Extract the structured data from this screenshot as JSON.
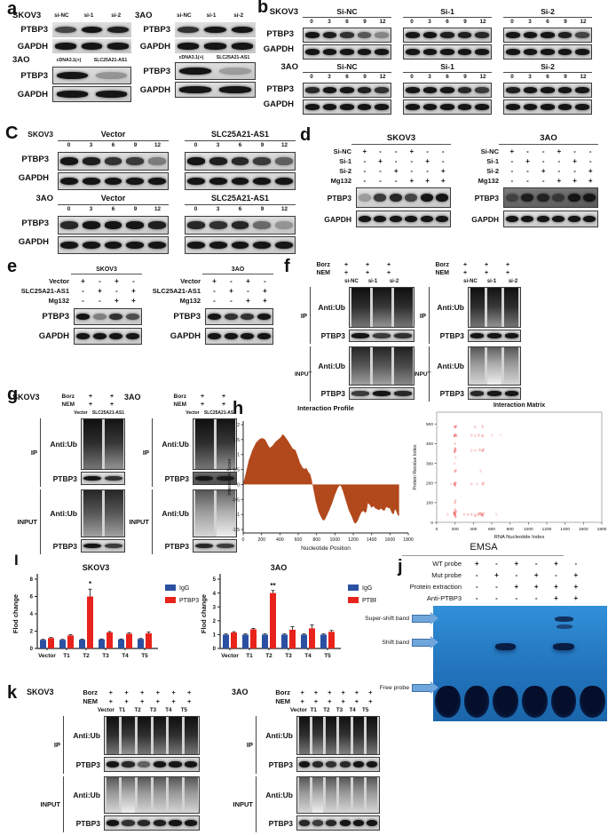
{
  "letters": {
    "a": "a",
    "b": "b",
    "c": "C",
    "d": "d",
    "e": "e",
    "f": "f",
    "g": "g",
    "h": "h",
    "i": "I",
    "j": "j",
    "k": "k"
  },
  "common": {
    "ptbp3": "PTBP3",
    "gapdh": "GAPDH",
    "anti_ub": "Anti:Ub",
    "ip": "IP",
    "input": "INPUT",
    "borz": "Borz",
    "nem": "NEM",
    "skov3": "SKOV3",
    "threeao": "3AO",
    "vector": "Vector",
    "slc": "SLC25A21-AS1",
    "mg132": "Mg132"
  },
  "panels": {
    "a": {
      "si_lanes": [
        "si-NC",
        "si-1",
        "si-2"
      ],
      "oe_lanes": [
        "cDNA3.1(+)",
        "SLC25A21-AS1"
      ],
      "row2_cell": "3AO"
    },
    "b": {
      "groups": [
        "Si-NC",
        "Si-1",
        "Si-2"
      ],
      "times": [
        "0",
        "3",
        "6",
        "9",
        "12"
      ]
    },
    "c": {
      "groups": [
        "Vector",
        "SLC25A21-AS1"
      ],
      "times": [
        "0",
        "3",
        "6",
        "9",
        "12"
      ]
    },
    "d": {
      "rows": [
        {
          "label": "Si-NC",
          "values": [
            "+",
            "-",
            "-",
            "+",
            "-",
            "-"
          ]
        },
        {
          "label": "Si-1",
          "values": [
            "-",
            "+",
            "-",
            "-",
            "+",
            "-"
          ]
        },
        {
          "label": "Si-2",
          "values": [
            "-",
            "-",
            "+",
            "-",
            "-",
            "+"
          ]
        },
        {
          "label": "Mg132",
          "values": [
            "-",
            "-",
            "-",
            "+",
            "+",
            "+"
          ]
        }
      ]
    },
    "e": {
      "rows": [
        {
          "label": "Vector",
          "values": [
            "+",
            "-",
            "+",
            "-"
          ]
        },
        {
          "label": "SLC25A21-AS1",
          "values": [
            "-",
            "+",
            "-",
            "+"
          ]
        },
        {
          "label": "Mg132",
          "values": [
            "-",
            "-",
            "+",
            "+"
          ]
        }
      ]
    },
    "f": {
      "treat": [
        {
          "label": "Borz",
          "values": [
            "+",
            "+",
            "+"
          ]
        },
        {
          "label": "NEM",
          "values": [
            "+",
            "+",
            "+"
          ]
        }
      ],
      "lanes": [
        "si-NC",
        "si-1",
        "si-2"
      ]
    },
    "g": {
      "treat": [
        {
          "label": "Borz",
          "values": [
            "+",
            "+"
          ]
        },
        {
          "label": "NEM",
          "values": [
            "+",
            "+"
          ]
        }
      ],
      "lanes": [
        "Vector",
        "SLC25A21-AS1"
      ]
    },
    "j": {
      "title": "EMSA",
      "rows": [
        {
          "label": "WT probe",
          "values": [
            "+",
            "-",
            "+",
            "-",
            "+",
            "-"
          ]
        },
        {
          "label": "Mut probe",
          "values": [
            "-",
            "+",
            "-",
            "+",
            "-",
            "+"
          ]
        },
        {
          "label": "Protein extraction",
          "values": [
            "-",
            "-",
            "+",
            "+",
            "+",
            "+"
          ]
        },
        {
          "label": "Anti-PTBP3",
          "values": [
            "-",
            "-",
            "-",
            "-",
            "+",
            "+"
          ]
        }
      ],
      "bands": [
        "Super-shift band",
        "Shift band",
        "Free probe"
      ]
    },
    "k": {
      "treat": [
        {
          "label": "Borz",
          "values": [
            "+",
            "+",
            "+",
            "+",
            "+",
            "+"
          ]
        },
        {
          "label": "NEM",
          "values": [
            "+",
            "+",
            "+",
            "+",
            "+",
            "+"
          ]
        }
      ],
      "lanes": [
        "Vector",
        "T1",
        "T2",
        "T3",
        "T4",
        "T5"
      ]
    }
  },
  "chart_data": [
    {
      "id": "interaction_profile",
      "type": "area",
      "title": "Interaction Profile",
      "xlabel": "Nucleotide Position",
      "ylabel": "Interaction Score",
      "xlim": [
        0,
        1800
      ],
      "ylim": [
        -1.5,
        2
      ],
      "xticks": [
        0,
        200,
        400,
        600,
        800,
        1000,
        1200,
        1400,
        1600,
        1800
      ],
      "yticks": [
        2,
        1.5,
        1,
        0.5,
        0,
        -0.5,
        -1,
        -1.5
      ],
      "color": "#b2491c",
      "points": [
        [
          0,
          0.02
        ],
        [
          30,
          0.4
        ],
        [
          60,
          0.8
        ],
        [
          100,
          1.15
        ],
        [
          140,
          1.4
        ],
        [
          180,
          1.52
        ],
        [
          210,
          1.55
        ],
        [
          240,
          1.5
        ],
        [
          270,
          1.32
        ],
        [
          290,
          1.22
        ],
        [
          320,
          1.3
        ],
        [
          350,
          1.42
        ],
        [
          380,
          1.5
        ],
        [
          410,
          1.58
        ],
        [
          430,
          1.68
        ],
        [
          450,
          1.62
        ],
        [
          480,
          1.5
        ],
        [
          510,
          1.35
        ],
        [
          540,
          1.2
        ],
        [
          570,
          1.15
        ],
        [
          600,
          0.9
        ],
        [
          620,
          0.72
        ],
        [
          650,
          0.55
        ],
        [
          670,
          0.52
        ],
        [
          690,
          0.55
        ],
        [
          710,
          0.42
        ],
        [
          730,
          0.35
        ],
        [
          745,
          0.18
        ],
        [
          755,
          0.02
        ],
        [
          765,
          -0.15
        ],
        [
          790,
          -0.55
        ],
        [
          820,
          -0.9
        ],
        [
          850,
          -1.1
        ],
        [
          870,
          -1.2
        ],
        [
          890,
          -1.18
        ],
        [
          910,
          -1.05
        ],
        [
          940,
          -0.85
        ],
        [
          970,
          -0.62
        ],
        [
          1000,
          -0.35
        ],
        [
          1030,
          -0.12
        ],
        [
          1055,
          -0.02
        ],
        [
          1070,
          -0.08
        ],
        [
          1090,
          -0.25
        ],
        [
          1120,
          -0.55
        ],
        [
          1150,
          -0.85
        ],
        [
          1180,
          -1.05
        ],
        [
          1210,
          -1.28
        ],
        [
          1230,
          -1.3
        ],
        [
          1250,
          -1.2
        ],
        [
          1270,
          -1.05
        ],
        [
          1290,
          -0.92
        ],
        [
          1310,
          -0.88
        ],
        [
          1330,
          -0.95
        ],
        [
          1345,
          -0.9
        ],
        [
          1360,
          -0.62
        ],
        [
          1380,
          -0.68
        ],
        [
          1400,
          -0.78
        ],
        [
          1420,
          -0.72
        ],
        [
          1440,
          -0.8
        ],
        [
          1460,
          -0.82
        ],
        [
          1480,
          -0.86
        ],
        [
          1500,
          -0.8
        ],
        [
          1520,
          -0.85
        ],
        [
          1540,
          -0.88
        ],
        [
          1560,
          -0.75
        ],
        [
          1580,
          -0.78
        ],
        [
          1600,
          -0.8
        ],
        [
          1620,
          -0.95
        ],
        [
          1640,
          -1.0
        ],
        [
          1655,
          -0.82
        ],
        [
          1670,
          -0.9
        ],
        [
          1685,
          -1.02
        ],
        [
          1700,
          -1.05
        ]
      ]
    },
    {
      "id": "interaction_matrix",
      "type": "scatter",
      "title": "Interaction Matrix",
      "xlabel": "RNA Nucleotide Index",
      "ylabel": "Protein Residue Index",
      "xlim": [
        0,
        1800
      ],
      "ylim": [
        0,
        560
      ],
      "xticks": [
        0,
        200,
        400,
        600,
        800,
        1000,
        1200,
        1400,
        1600,
        1800
      ],
      "yticks": [
        0,
        100,
        200,
        300,
        400,
        500
      ],
      "color": "#f07070",
      "points": [
        [
          200,
          40,
          0.9
        ],
        [
          195,
          50,
          0.7
        ],
        [
          205,
          30,
          0.6
        ],
        [
          190,
          45,
          0.8
        ],
        [
          210,
          55,
          0.5
        ],
        [
          200,
          65,
          0.4
        ],
        [
          120,
          40,
          0.25
        ],
        [
          300,
          40,
          0.3
        ],
        [
          340,
          40,
          0.35
        ],
        [
          380,
          40,
          0.4
        ],
        [
          420,
          35,
          0.5
        ],
        [
          450,
          40,
          0.45
        ],
        [
          470,
          45,
          0.6
        ],
        [
          490,
          40,
          0.7
        ],
        [
          500,
          35,
          0.55
        ],
        [
          510,
          45,
          0.4
        ],
        [
          650,
          40,
          0.2
        ],
        [
          200,
          100,
          0.4
        ],
        [
          205,
          110,
          0.3
        ],
        [
          195,
          195,
          0.8
        ],
        [
          205,
          200,
          0.6
        ],
        [
          200,
          188,
          0.5
        ],
        [
          380,
          195,
          0.3
        ],
        [
          440,
          195,
          0.25
        ],
        [
          500,
          195,
          0.45
        ],
        [
          510,
          200,
          0.3
        ],
        [
          160,
          195,
          0.2
        ],
        [
          200,
          260,
          0.5
        ],
        [
          210,
          265,
          0.35
        ],
        [
          480,
          260,
          0.25
        ],
        [
          195,
          300,
          0.2
        ],
        [
          205,
          330,
          0.25
        ],
        [
          195,
          360,
          0.7
        ],
        [
          205,
          368,
          0.6
        ],
        [
          200,
          375,
          0.5
        ],
        [
          380,
          365,
          0.3
        ],
        [
          420,
          365,
          0.3
        ],
        [
          470,
          368,
          0.4
        ],
        [
          500,
          365,
          0.5
        ],
        [
          510,
          370,
          0.35
        ],
        [
          200,
          400,
          0.3
        ],
        [
          195,
          440,
          0.75
        ],
        [
          205,
          445,
          0.55
        ],
        [
          215,
          440,
          0.4
        ],
        [
          380,
          442,
          0.3
        ],
        [
          420,
          440,
          0.3
        ],
        [
          460,
          443,
          0.35
        ],
        [
          500,
          440,
          0.5
        ],
        [
          600,
          442,
          0.2
        ],
        [
          200,
          485,
          0.7
        ],
        [
          210,
          488,
          0.5
        ],
        [
          420,
          485,
          0.3
        ],
        [
          500,
          487,
          0.4
        ],
        [
          700,
          445,
          0.15
        ]
      ]
    },
    {
      "id": "rip_skov3",
      "type": "bar",
      "title": "SKOV3",
      "ylabel": "Flod change",
      "categories": [
        "Vector",
        "T1",
        "T2",
        "T3",
        "T4",
        "T5"
      ],
      "ylim": [
        0,
        8
      ],
      "yticks": [
        0,
        2,
        4,
        6,
        8
      ],
      "legend_pos": "right",
      "series": [
        {
          "name": "IgG",
          "color": "#2b50a1",
          "values": [
            1.0,
            1.0,
            1.02,
            1.05,
            1.05,
            1.1
          ],
          "errors": [
            0.05,
            0.05,
            0.05,
            0.05,
            0.05,
            0.05
          ]
        },
        {
          "name": "PTBP3",
          "color": "#e8231c",
          "values": [
            1.2,
            1.5,
            6.0,
            1.85,
            1.7,
            1.75
          ],
          "errors": [
            0.06,
            0.08,
            0.85,
            0.1,
            0.12,
            0.15
          ]
        }
      ],
      "sig": {
        "category": "T2",
        "label": "*"
      }
    },
    {
      "id": "rip_3ao",
      "type": "bar",
      "title": "3AO",
      "ylabel": "Flod change",
      "categories": [
        "Vector",
        "T1",
        "T2",
        "T3",
        "T4",
        "T5"
      ],
      "ylim": [
        0,
        5
      ],
      "yticks": [
        0,
        1,
        2,
        3,
        4,
        5
      ],
      "legend_pos": "right",
      "series": [
        {
          "name": "IgG",
          "color": "#2b50a1",
          "values": [
            1.0,
            1.0,
            1.0,
            1.0,
            1.0,
            1.0
          ],
          "errors": [
            0.05,
            0.05,
            0.05,
            0.05,
            0.05,
            0.05
          ]
        },
        {
          "name": "PTBP3",
          "color": "#e8231c",
          "values": [
            1.15,
            1.38,
            4.0,
            1.35,
            1.45,
            1.2
          ],
          "errors": [
            0.06,
            0.07,
            0.18,
            0.22,
            0.25,
            0.1
          ]
        }
      ],
      "sig": {
        "category": "T2",
        "label": "**"
      }
    }
  ]
}
